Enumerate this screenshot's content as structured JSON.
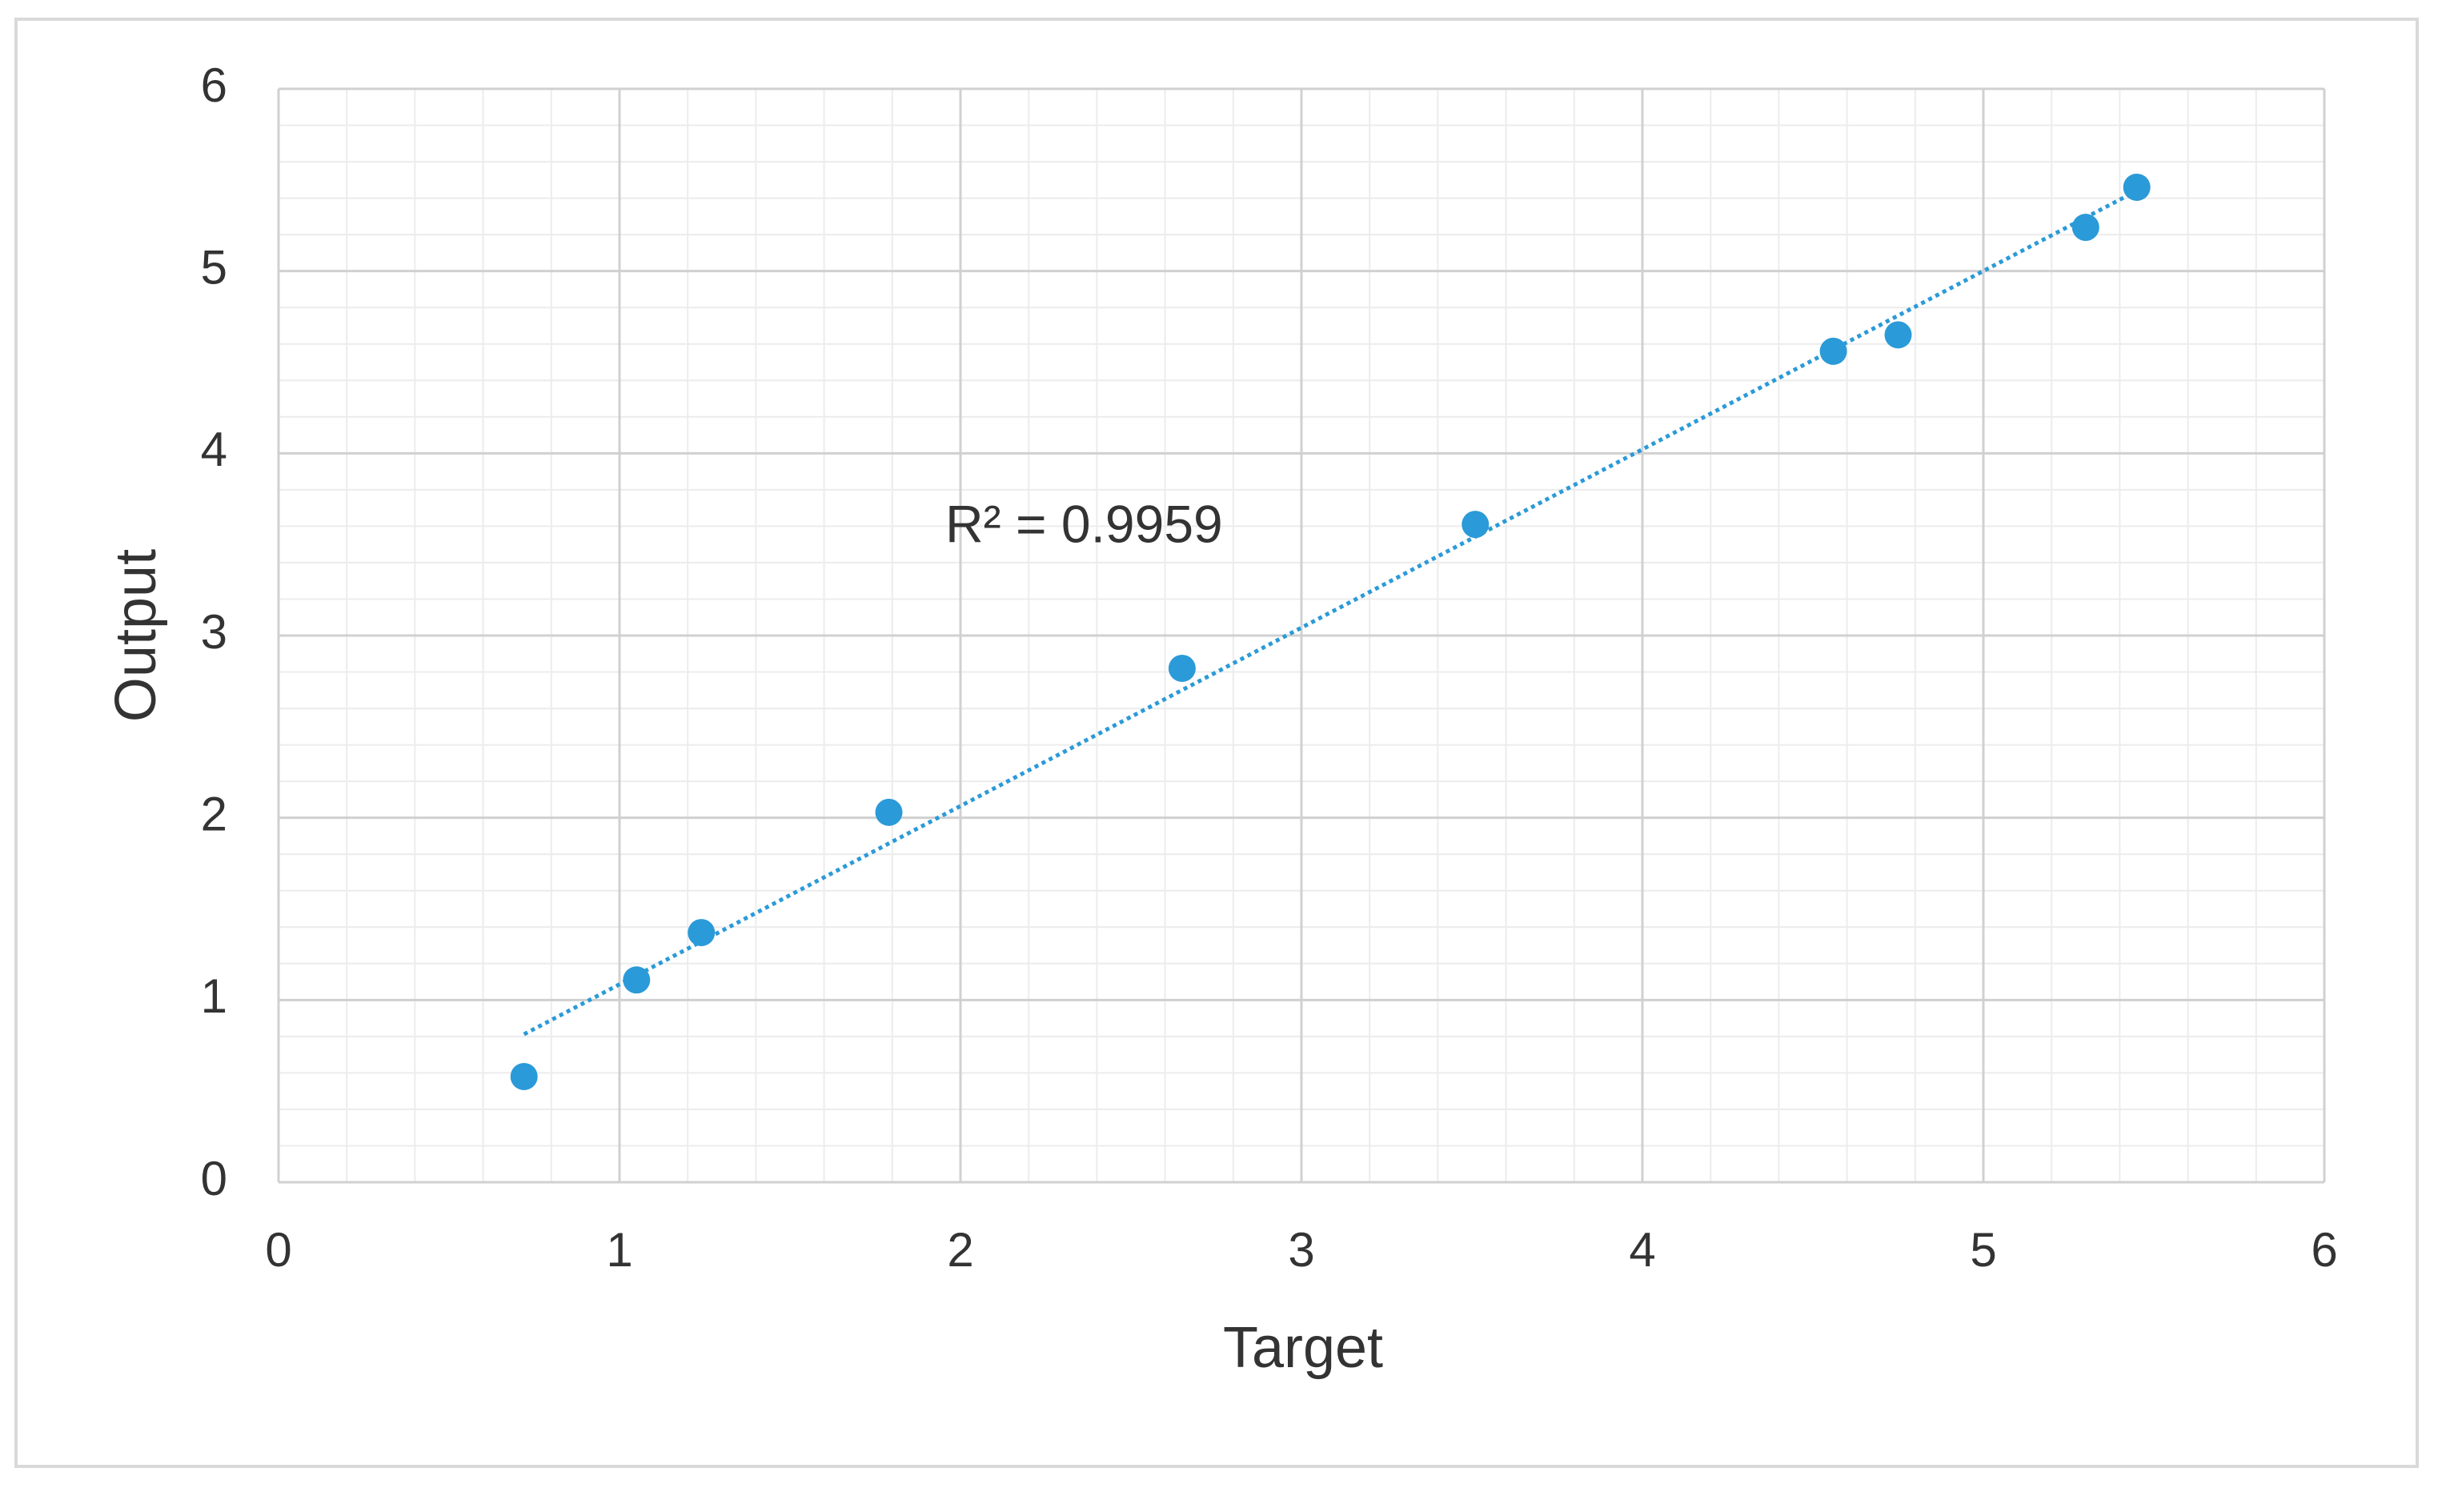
{
  "chart_data": {
    "type": "scatter",
    "x_label": "Target",
    "y_label": "Output",
    "annotation": "R² = 0.9959",
    "x": [
      0.72,
      1.05,
      1.24,
      1.79,
      2.65,
      3.51,
      4.56,
      4.75,
      5.3,
      5.45
    ],
    "series": [
      {
        "color": "#2b9ad8",
        "values": [
          0.58,
          1.11,
          1.37,
          2.03,
          2.82,
          3.61,
          4.56,
          4.65,
          5.24,
          5.46
        ]
      }
    ],
    "xlim": [
      0,
      6
    ],
    "xticks": [
      0,
      1,
      2,
      3,
      4,
      5,
      6
    ],
    "ylim": [
      0,
      6
    ],
    "yticks": [
      0,
      1,
      2,
      3,
      4,
      5,
      6
    ],
    "grid": true,
    "minor_grid": true,
    "trendline": true
  }
}
